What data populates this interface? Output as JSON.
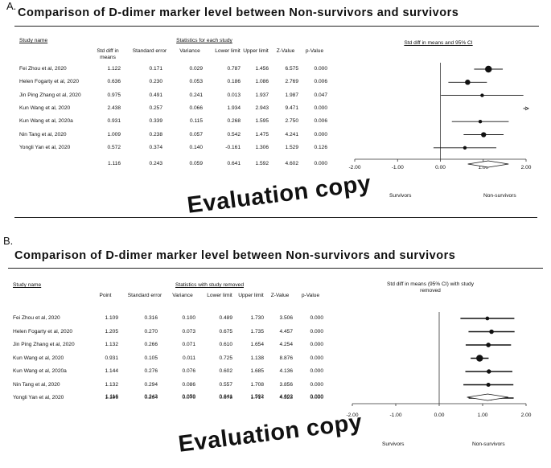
{
  "chart_data": [
    {
      "type": "forest",
      "panel_label": "A.",
      "title": "Comparison of D-dimer marker level between Non-survivors and survivors",
      "headers": {
        "study": "Study name",
        "group": "Statistics for each study",
        "effect": "Std diff in means",
        "se": "Standard error",
        "variance": "Variance",
        "lower": "Lower limit",
        "upper": "Upper limit",
        "z": "Z-Value",
        "p": "p-Value",
        "plot": "Std diff in means and 95% CI"
      },
      "studies": [
        "Fei Zhou et al, 2020",
        "Helen Fogarty et al, 2020",
        "Jin Ping Zhang et al, 2020",
        "Kun Wang et al, 2020",
        "Kun Wang et al, 2020a",
        "Nin Tang et al, 2020",
        "Yongli Yan et al, 2020"
      ],
      "effect": [
        "1.122",
        "0.636",
        "0.975",
        "2.438",
        "0.931",
        "1.009",
        "0.572"
      ],
      "se": [
        "0.171",
        "0.230",
        "0.491",
        "0.257",
        "0.339",
        "0.238",
        "0.374"
      ],
      "variance": [
        "0.029",
        "0.053",
        "0.241",
        "0.066",
        "0.115",
        "0.057",
        "0.140"
      ],
      "lower": [
        "0.787",
        "0.186",
        "0.013",
        "1.934",
        "0.268",
        "0.542",
        "-0.161"
      ],
      "upper": [
        "1.456",
        "1.086",
        "1.937",
        "2.943",
        "1.595",
        "1.475",
        "1.306"
      ],
      "z": [
        "6.575",
        "2.769",
        "1.987",
        "9.471",
        "2.750",
        "4.241",
        "1.529"
      ],
      "p": [
        "0.000",
        "0.006",
        "0.047",
        "0.000",
        "0.006",
        "0.000",
        "0.126"
      ],
      "summary": {
        "effect": "1.116",
        "se": "0.243",
        "variance": "0.059",
        "lower": "0.641",
        "upper": "1.592",
        "z": "4.602",
        "p": "0.000"
      },
      "xaxis": {
        "ticks": [
          "-2.00",
          "-1.00",
          "0.00",
          "1.00",
          "2.00"
        ],
        "xlim": [
          -2,
          2
        ]
      },
      "favours": {
        "left": "Survivors",
        "right": "Non-survivors"
      },
      "watermark": "Evaluation copy"
    },
    {
      "type": "forest",
      "panel_label": "B.",
      "title": "Comparison of D-dimer marker level between Non-survivors and survivors",
      "headers": {
        "study": "Study name",
        "group": "Statistics with study removed",
        "effect": "Point",
        "se": "Standard error",
        "variance": "Variance",
        "lower": "Lower limit",
        "upper": "Upper limit",
        "z": "Z-Value",
        "p": "p-Value",
        "plot": "Std diff in means (95% CI) with study removed"
      },
      "studies": [
        "Fei Zhou et al, 2020",
        "Helen Fogarty et al, 2020",
        "Jin Ping Zhang et al, 2020",
        "Kun Wang et al, 2020",
        "Kun Wang et al, 2020a",
        "Nin Tang et al, 2020",
        "Yongli Yan et al, 2020"
      ],
      "effect": [
        "1.109",
        "1.205",
        "1.132",
        "0.931",
        "1.144",
        "1.132",
        "1.196"
      ],
      "se": [
        "0.316",
        "0.270",
        "0.266",
        "0.105",
        "0.276",
        "0.294",
        "0.264"
      ],
      "variance": [
        "0.100",
        "0.073",
        "0.071",
        "0.011",
        "0.076",
        "0.086",
        "0.070"
      ],
      "lower": [
        "0.489",
        "0.675",
        "0.610",
        "0.725",
        "0.602",
        "0.557",
        "0.678"
      ],
      "upper": [
        "1.730",
        "1.735",
        "1.654",
        "1.138",
        "1.685",
        "1.708",
        "1.714"
      ],
      "z": [
        "3.506",
        "4.457",
        "4.254",
        "8.876",
        "4.136",
        "3.856",
        "4.523"
      ],
      "p": [
        "0.000",
        "0.000",
        "0.000",
        "0.000",
        "0.000",
        "0.000",
        "0.000"
      ],
      "summary": {
        "effect": "1.116",
        "se": "0.243",
        "variance": "0.059",
        "lower": "0.641",
        "upper": "1.592",
        "z": "4.602",
        "p": "0.000"
      },
      "xaxis": {
        "ticks": [
          "-2.00",
          "-1.00",
          "0.00",
          "1.00",
          "2.00"
        ],
        "xlim": [
          -2,
          2
        ]
      },
      "favours": {
        "left": "Survivors",
        "right": "Non-survivors"
      },
      "watermark": "Evaluation copy"
    }
  ]
}
